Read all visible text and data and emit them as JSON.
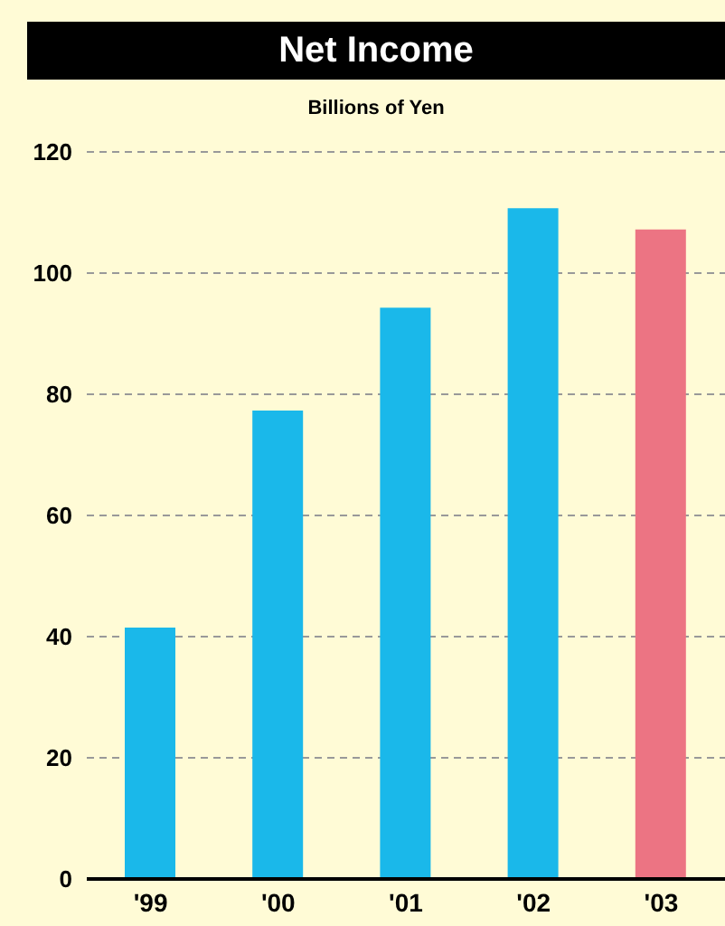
{
  "chart_data": {
    "type": "bar",
    "title": "Net Income",
    "subtitle": "Billions of Yen",
    "categories": [
      "'99",
      "'00",
      "'01",
      "'02",
      "'03"
    ],
    "values": [
      41.5,
      77.3,
      94.3,
      110.7,
      107.2
    ],
    "colors": [
      "#1ab8ea",
      "#1ab8ea",
      "#1ab8ea",
      "#1ab8ea",
      "#ec7483"
    ],
    "ylim": [
      0,
      120
    ],
    "yticks": [
      0,
      20,
      40,
      60,
      80,
      100,
      120
    ],
    "grid": "y"
  }
}
